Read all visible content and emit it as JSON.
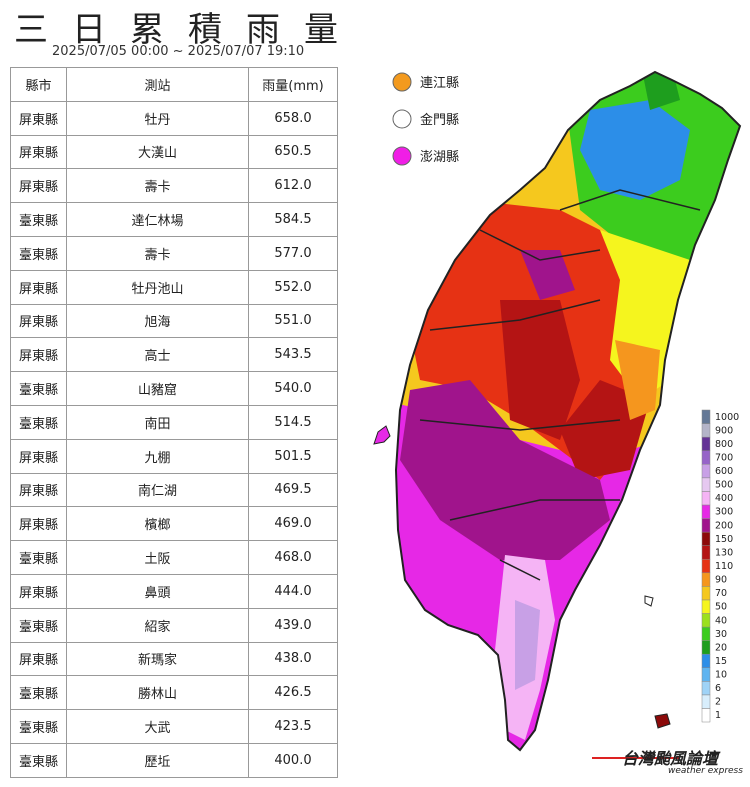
{
  "header": {
    "title": "三日累積雨量",
    "subtitle": "2025/07/05 00:00 ~ 2025/07/07 19:10"
  },
  "table": {
    "columns": [
      "縣市",
      "測站",
      "雨量(mm)"
    ],
    "rows": [
      [
        "屏東縣",
        "牡丹",
        "658.0"
      ],
      [
        "屏東縣",
        "大漢山",
        "650.5"
      ],
      [
        "屏東縣",
        "壽卡",
        "612.0"
      ],
      [
        "臺東縣",
        "達仁林場",
        "584.5"
      ],
      [
        "臺東縣",
        "壽卡",
        "577.0"
      ],
      [
        "屏東縣",
        "牡丹池山",
        "552.0"
      ],
      [
        "屏東縣",
        "旭海",
        "551.0"
      ],
      [
        "屏東縣",
        "高士",
        "543.5"
      ],
      [
        "臺東縣",
        "山豬窟",
        "540.0"
      ],
      [
        "臺東縣",
        "南田",
        "514.5"
      ],
      [
        "屏東縣",
        "九棚",
        "501.5"
      ],
      [
        "屏東縣",
        "南仁湖",
        "469.5"
      ],
      [
        "屏東縣",
        "檳榔",
        "469.0"
      ],
      [
        "臺東縣",
        "土阪",
        "468.0"
      ],
      [
        "屏東縣",
        "鼻頭",
        "444.0"
      ],
      [
        "臺東縣",
        "紹家",
        "439.0"
      ],
      [
        "屏東縣",
        "新瑪家",
        "438.0"
      ],
      [
        "臺東縣",
        "勝林山",
        "426.5"
      ],
      [
        "臺東縣",
        "大武",
        "423.5"
      ],
      [
        "臺東縣",
        "歷坵",
        "400.0"
      ]
    ]
  },
  "islands": [
    {
      "name": "連江縣",
      "color": "#f39a1e"
    },
    {
      "name": "金門縣",
      "color": "#ffffff"
    },
    {
      "name": "澎湖縣",
      "color": "#f01ee6"
    }
  ],
  "rain_scale": {
    "levels": [
      1,
      2,
      6,
      10,
      15,
      20,
      30,
      40,
      50,
      70,
      90,
      110,
      130,
      150,
      200,
      300,
      400,
      500,
      600,
      700,
      800,
      900,
      1000
    ],
    "colors": [
      "#ffffff",
      "#d8eefc",
      "#9fd3f7",
      "#5fb4f0",
      "#2c8ee8",
      "#1e9e1e",
      "#3ccc1e",
      "#9be01e",
      "#f5f51e",
      "#f5c81e",
      "#f5961e",
      "#e63214",
      "#b41414",
      "#8c0a0a",
      "#a0148c",
      "#e628e6",
      "#f5b4f5",
      "#e6c8f0",
      "#c8a0e6",
      "#9664c8",
      "#643296",
      "#b4b4c8",
      "#647896"
    ]
  },
  "logo": {
    "name": "台灣颱風論壇",
    "tagline": "weather express"
  }
}
